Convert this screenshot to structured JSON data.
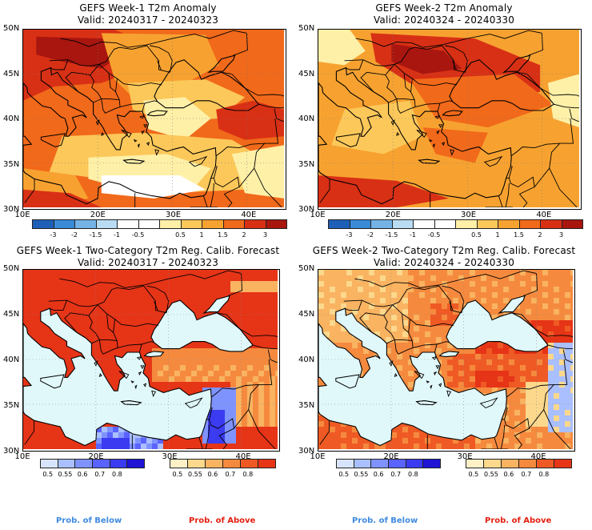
{
  "panels": [
    {
      "id": "p1",
      "title1": "GEFS Week-1 T2m Anomaly",
      "title2": "Valid: 20240317 - 20240323",
      "kind": "anom",
      "scene": 1
    },
    {
      "id": "p2",
      "title1": "GEFS Week-2 T2m Anomaly",
      "title2": "Valid: 20240324 - 20240330",
      "kind": "anom",
      "scene": 2
    },
    {
      "id": "p3",
      "title1": "GEFS Week-1 Two-Category T2m Reg. Calib. Forecast",
      "title2": "Valid: 20240317 - 20240323",
      "kind": "prob",
      "scene": 3
    },
    {
      "id": "p4",
      "title1": "GEFS Week-2 Two-Category T2m Reg. Calib. Forecast",
      "title2": "Valid: 20240324 - 20240330",
      "kind": "prob",
      "scene": 4
    }
  ],
  "lat_labels": [
    "50N",
    "45N",
    "40N",
    "35N",
    "30N"
  ],
  "lon_labels": [
    "10E",
    "20E",
    "30E",
    "40E"
  ],
  "anom_scale": {
    "colors": [
      "#1f5fb8",
      "#3a8ad6",
      "#75b2e6",
      "#b9dcf2",
      "#ffffff",
      "#ffffff",
      "#fff0a8",
      "#fcc85a",
      "#f7a230",
      "#f1691a",
      "#d83015",
      "#a8160f"
    ],
    "ticks": [
      "-3",
      "-2",
      "-1.5",
      "-1",
      "-0.5",
      "0.5",
      "1",
      "1.5",
      "2",
      "3"
    ]
  },
  "below_scale": {
    "colors": [
      "#d7e4fb",
      "#aabfff",
      "#7f93ff",
      "#5a63ff",
      "#3b3bf1",
      "#1f14d6"
    ],
    "ticks": [
      "0.5",
      "0.55",
      "0.6",
      "0.7",
      "0.8"
    ]
  },
  "above_scale": {
    "colors": [
      "#fff0c8",
      "#fcd88c",
      "#f9b361",
      "#f58a3e",
      "#ef5a24",
      "#e63417"
    ],
    "ticks": [
      "0.5",
      "0.55",
      "0.6",
      "0.7",
      "0.8"
    ]
  },
  "prob_labels": {
    "below": "Prob. of Below",
    "above": "Prob. of Above"
  },
  "colors": {
    "ocean": "#e1f8fa",
    "below_label": "#3f8be0",
    "above_label": "#e32010",
    "coast": "#000000"
  }
}
